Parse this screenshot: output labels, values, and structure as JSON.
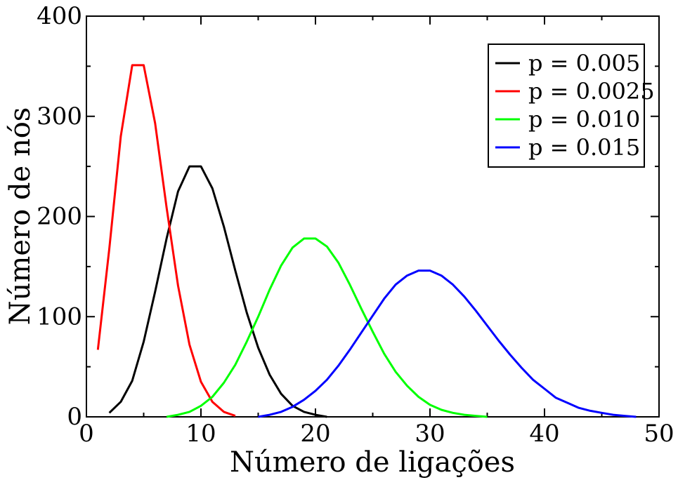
{
  "chart_data": {
    "type": "line",
    "title": "",
    "xlabel": "Número de ligações",
    "ylabel": "Número de nós",
    "xlim": [
      0,
      50
    ],
    "ylim": [
      0,
      400
    ],
    "xticks": [
      "0",
      "10",
      "20",
      "30",
      "40",
      "50"
    ],
    "yticks": [
      "0",
      "100",
      "200",
      "300",
      "400"
    ],
    "grid": false,
    "legend_position": "top-right",
    "series": [
      {
        "name": "p = 0.005",
        "color": "#000000",
        "x": [
          2,
          3,
          4,
          5,
          6,
          7,
          8,
          9,
          10,
          11,
          12,
          13,
          14,
          15,
          16,
          17,
          18,
          19,
          20,
          21
        ],
        "y": [
          4,
          15,
          36,
          75,
          125,
          178,
          225,
          250,
          250,
          228,
          190,
          146,
          104,
          69,
          42,
          23,
          11,
          5,
          2,
          0
        ]
      },
      {
        "name": "p = 0.0025",
        "color": "#ff0000",
        "x": [
          1,
          2,
          3,
          4,
          5,
          6,
          7,
          8,
          9,
          10,
          11,
          12,
          13
        ],
        "y": [
          67,
          168,
          280,
          351,
          351,
          293,
          209,
          131,
          72,
          35,
          15,
          5,
          1
        ]
      },
      {
        "name": "p = 0.010",
        "color": "#00ff00",
        "x": [
          7,
          8,
          9,
          10,
          11,
          12,
          13,
          14,
          15,
          16,
          17,
          18,
          19,
          20,
          21,
          22,
          23,
          24,
          25,
          26,
          27,
          28,
          29,
          30,
          31,
          32,
          33,
          34,
          35
        ],
        "y": [
          0,
          2,
          5,
          11,
          20,
          34,
          52,
          75,
          100,
          127,
          151,
          169,
          178,
          178,
          170,
          154,
          132,
          108,
          85,
          63,
          45,
          31,
          20,
          12,
          7,
          4,
          2,
          1,
          0
        ]
      },
      {
        "name": "p = 0.015",
        "color": "#0000ff",
        "x": [
          15,
          16,
          17,
          18,
          19,
          20,
          21,
          22,
          23,
          24,
          25,
          26,
          27,
          28,
          29,
          30,
          31,
          32,
          33,
          34,
          35,
          36,
          37,
          38,
          39,
          40,
          41,
          42,
          43,
          44,
          45,
          46,
          47,
          48
        ],
        "y": [
          0,
          2,
          5,
          10,
          17,
          26,
          37,
          51,
          67,
          84,
          101,
          118,
          132,
          141,
          146,
          146,
          141,
          132,
          120,
          106,
          91,
          76,
          62,
          49,
          37,
          28,
          19,
          14,
          9,
          6,
          4,
          2,
          1,
          0
        ]
      }
    ]
  }
}
